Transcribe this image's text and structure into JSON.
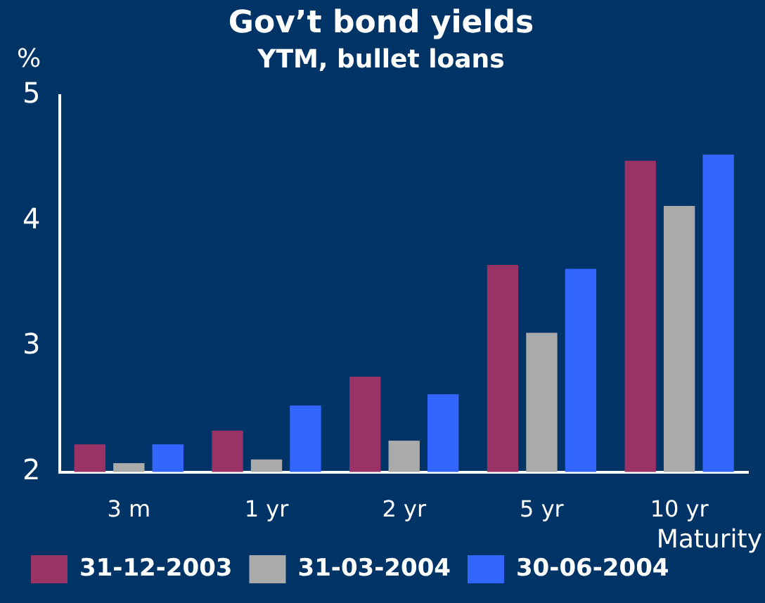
{
  "chart_data": {
    "type": "bar",
    "title": "Gov’t bond yields",
    "subtitle": "YTM, bullet loans",
    "ylabel": "%",
    "xlabel": "Maturity",
    "categories": [
      "3 m",
      "1 yr",
      "2 yr",
      "5 yr",
      "10 yr"
    ],
    "series": [
      {
        "name": "31-12-2003",
        "color": "#993366",
        "values": [
          2.22,
          2.33,
          2.76,
          3.65,
          4.48
        ]
      },
      {
        "name": "31-03-2004",
        "color": "#aaaaaa",
        "values": [
          2.07,
          2.1,
          2.25,
          3.11,
          4.12
        ]
      },
      {
        "name": "30-06-2004",
        "color": "#3366ff",
        "values": [
          2.22,
          2.53,
          2.62,
          3.62,
          4.53
        ]
      }
    ],
    "ylim": [
      2,
      5
    ],
    "yticks": [
      2,
      3,
      4,
      5
    ],
    "grid": false,
    "legend": "bottom"
  }
}
